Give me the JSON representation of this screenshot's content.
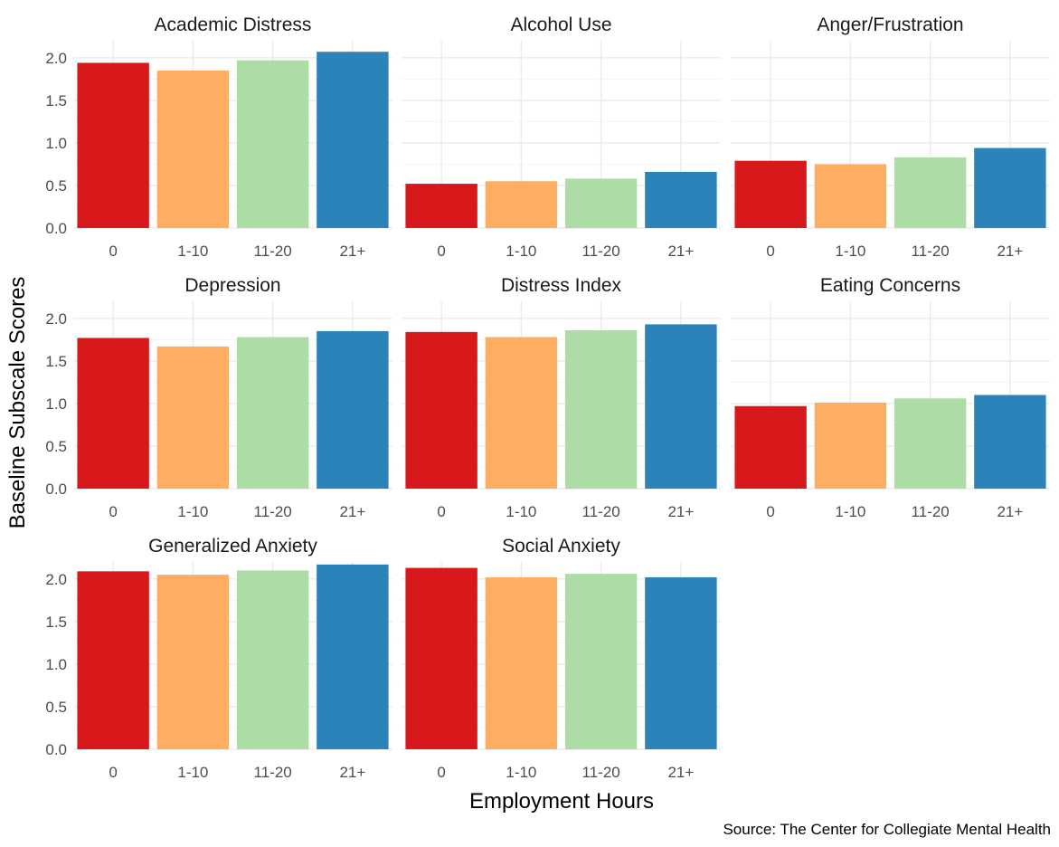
{
  "chart_data": {
    "type": "bar",
    "layout": "facet-grid",
    "xlabel": "Employment Hours",
    "ylabel": "Baseline Subscale Scores",
    "caption": "Source: The Center for Collegiate Mental Health",
    "categories": [
      "0",
      "1-10",
      "11-20",
      "21+"
    ],
    "colors": [
      "#d7191c",
      "#fdae61",
      "#abdda4",
      "#2b83ba"
    ],
    "ylim": [
      0,
      2.2
    ],
    "yticks": [
      "0.0",
      "0.5",
      "1.0",
      "1.5",
      "2.0"
    ],
    "grid": true,
    "legend": "none",
    "panels": [
      {
        "title": "Academic Distress",
        "values": [
          1.94,
          1.85,
          1.97,
          2.07
        ]
      },
      {
        "title": "Alcohol Use",
        "values": [
          0.52,
          0.55,
          0.58,
          0.66
        ]
      },
      {
        "title": "Anger/Frustration",
        "values": [
          0.79,
          0.75,
          0.83,
          0.94
        ]
      },
      {
        "title": "Depression",
        "values": [
          1.77,
          1.67,
          1.78,
          1.85
        ]
      },
      {
        "title": "Distress Index",
        "values": [
          1.84,
          1.78,
          1.86,
          1.93
        ]
      },
      {
        "title": "Eating Concerns",
        "values": [
          0.97,
          1.01,
          1.06,
          1.1
        ]
      },
      {
        "title": "Generalized Anxiety",
        "values": [
          2.09,
          2.05,
          2.1,
          2.17
        ]
      },
      {
        "title": "Social Anxiety",
        "values": [
          2.13,
          2.02,
          2.06,
          2.02
        ]
      }
    ]
  }
}
